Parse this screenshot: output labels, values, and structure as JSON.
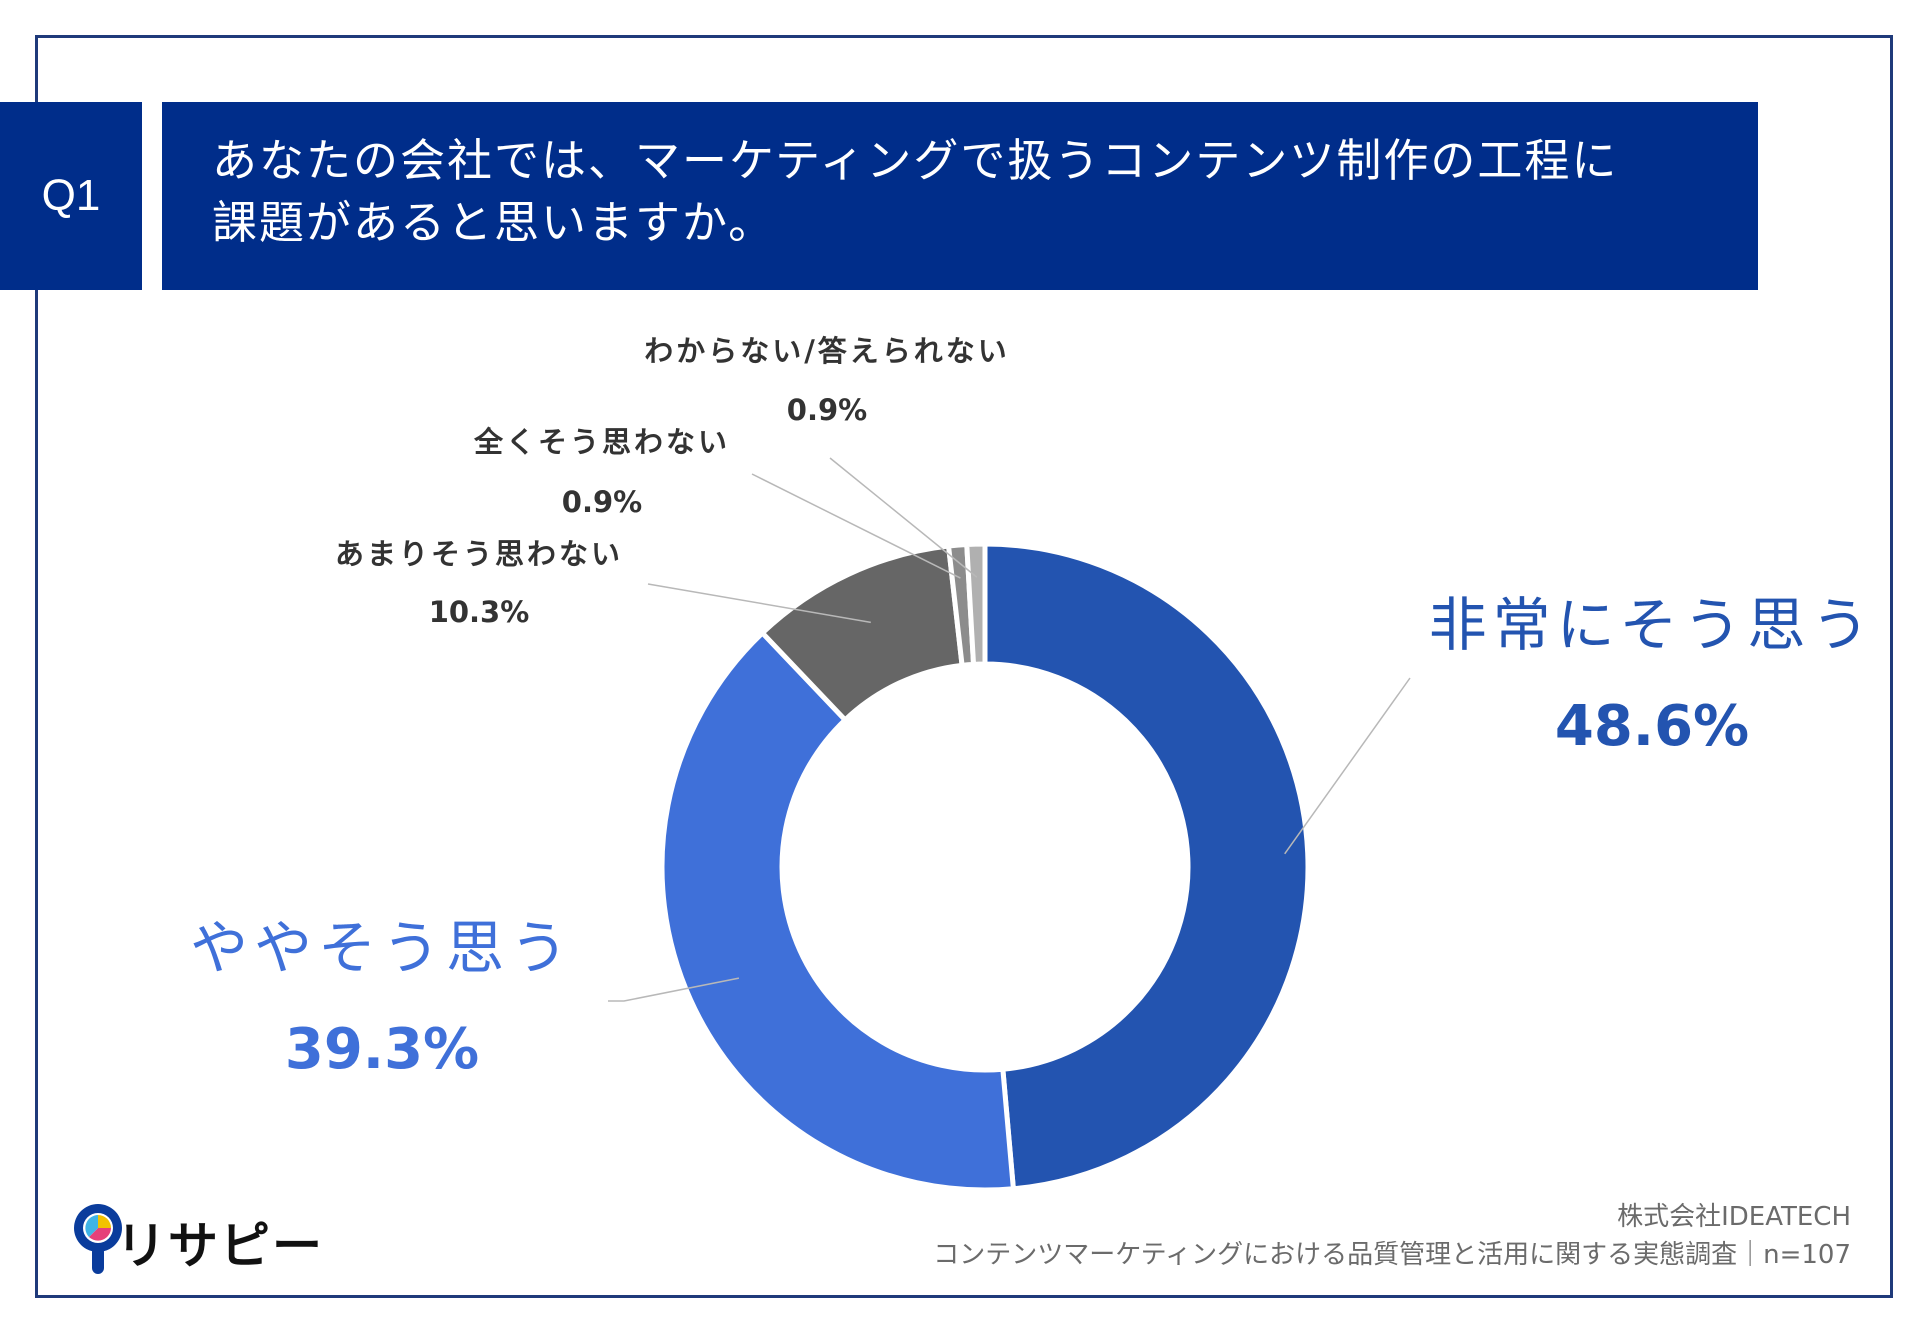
{
  "question": {
    "number": "Q1",
    "title_line1": "あなたの会社では、マーケティングで扱うコンテンツ制作の工程に",
    "title_line2": "課題があると思いますか。"
  },
  "chart_data": {
    "type": "pie",
    "subtype": "donut",
    "slices": [
      {
        "label": "非常にそう思う",
        "value": 48.6,
        "display": "48.6%",
        "color": "#2354b0"
      },
      {
        "label": "ややそう思う",
        "value": 39.3,
        "display": "39.3%",
        "color": "#3f70d9"
      },
      {
        "label": "あまりそう思わない",
        "value": 10.3,
        "display": "10.3%",
        "color": "#666666"
      },
      {
        "label": "全くそう思わない",
        "value": 0.9,
        "display": "0.9%",
        "color": "#8c8c8c"
      },
      {
        "label": "わからない/答えられない",
        "value": 0.9,
        "display": "0.9%",
        "color": "#b0b0b0"
      }
    ]
  },
  "footer": {
    "company": "株式会社IDEATECH",
    "survey": "コンテンツマーケティングにおける品質管理と活用に関する実態調査｜n=107"
  },
  "logo": {
    "text": "リサピー"
  }
}
